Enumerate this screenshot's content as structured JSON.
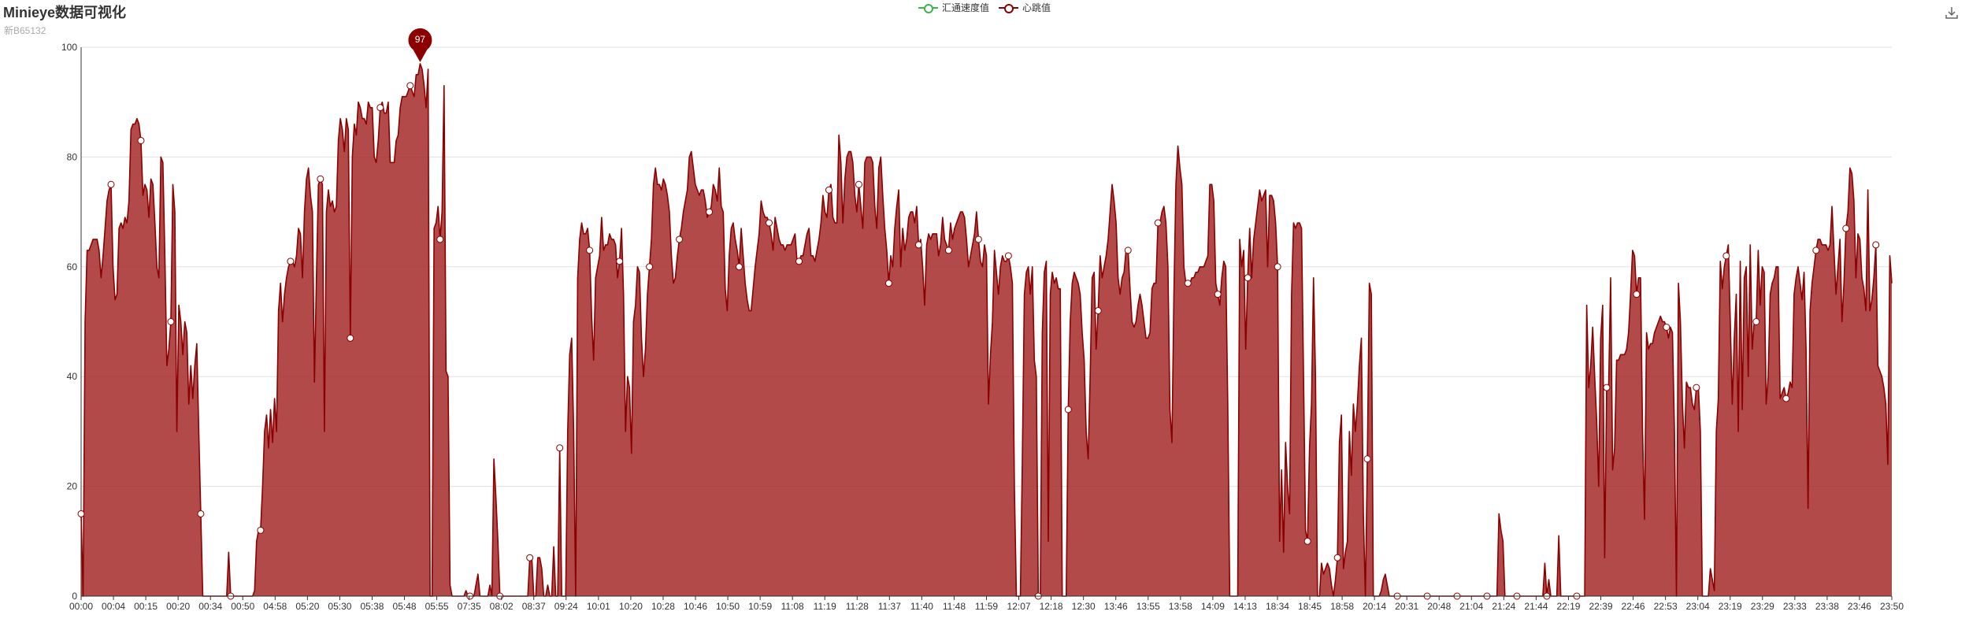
{
  "header": {
    "title": "Minieye数据可视化",
    "subtitle": "新B65132"
  },
  "legend": {
    "items": [
      {
        "label": "汇通速度值",
        "color": "#3cb44b"
      },
      {
        "label": "心跳值",
        "color": "#8b0000"
      }
    ]
  },
  "toolbox": {
    "icon": "download-icon"
  },
  "colors": {
    "series_line": "#8b0000",
    "series_fill": "#a52a2a",
    "grid": "#e0e0e0",
    "axis": "#333333",
    "marker": "#8b0000"
  },
  "chart_data": {
    "type": "area",
    "title": "Minieye数据可视化",
    "subtitle": "新B65132",
    "ylim": [
      0,
      100
    ],
    "yticks": [
      0,
      20,
      40,
      60,
      80,
      100
    ],
    "grid": true,
    "legend_position": "top-center",
    "xticks": [
      "00:00",
      "00:04",
      "00:15",
      "00:20",
      "00:34",
      "00:50",
      "04:58",
      "05:20",
      "05:30",
      "05:38",
      "05:48",
      "05:55",
      "07:35",
      "08:02",
      "08:37",
      "09:24",
      "10:01",
      "10:20",
      "10:28",
      "10:46",
      "10:50",
      "10:59",
      "11:08",
      "11:19",
      "11:28",
      "11:37",
      "11:40",
      "11:48",
      "11:59",
      "12:07",
      "12:18",
      "12:30",
      "13:46",
      "13:55",
      "13:58",
      "14:09",
      "14:13",
      "18:34",
      "18:45",
      "18:58",
      "20:14",
      "20:31",
      "20:48",
      "21:04",
      "21:24",
      "21:44",
      "22:19",
      "22:39",
      "22:46",
      "22:53",
      "23:04",
      "23:19",
      "23:29",
      "23:33",
      "23:38",
      "23:46",
      "23:50"
    ],
    "series": [
      {
        "name": "心跳值",
        "values": [
          15,
          0,
          50,
          63,
          63,
          64,
          65,
          65,
          65,
          63,
          58,
          62,
          67,
          72,
          74,
          75,
          60,
          54,
          55,
          67,
          68,
          67,
          69,
          68,
          72,
          85,
          86,
          86,
          87,
          86,
          83,
          73,
          75,
          74,
          69,
          76,
          75,
          68,
          60,
          58,
          80,
          79,
          62,
          42,
          45,
          50,
          75,
          70,
          30,
          53,
          50,
          44,
          50,
          48,
          35,
          42,
          36,
          42,
          46,
          30,
          15,
          0,
          0,
          0,
          0,
          0,
          0,
          0,
          0,
          0,
          0,
          0,
          0,
          0,
          8,
          0,
          0,
          0,
          0,
          0,
          0,
          0,
          0,
          0,
          0,
          0,
          0,
          1,
          10,
          12,
          12,
          20,
          30,
          33,
          27,
          34,
          28,
          36,
          30,
          52,
          57,
          50,
          55,
          58,
          60,
          61,
          61,
          60,
          62,
          67,
          66,
          58,
          70,
          76,
          78,
          73,
          70,
          39,
          58,
          75,
          76,
          75,
          30,
          70,
          74,
          71,
          72,
          70,
          71,
          83,
          87,
          85,
          81,
          87,
          85,
          47,
          80,
          86,
          84,
          90,
          89,
          87,
          87,
          86,
          90,
          89,
          89,
          80,
          79,
          83,
          89,
          90,
          88,
          88,
          90,
          79,
          79,
          79,
          83,
          84,
          89,
          91,
          91,
          91,
          92,
          93,
          92,
          91,
          95,
          95,
          97,
          96,
          93,
          89,
          96,
          0,
          0,
          67,
          68,
          71,
          65,
          70,
          93,
          41,
          40,
          2,
          0,
          0,
          0,
          0,
          0,
          0,
          0,
          1,
          0,
          0,
          0,
          0,
          2,
          4,
          0,
          0,
          0,
          0,
          0,
          2,
          0,
          25,
          18,
          10,
          0,
          0,
          0,
          0,
          0,
          0,
          0,
          0,
          0,
          0,
          0,
          0,
          0,
          0,
          0,
          7,
          7,
          0,
          0,
          7,
          7,
          5,
          0,
          0,
          2,
          0,
          0,
          9,
          0,
          0,
          27,
          0,
          0,
          0,
          30,
          44,
          47,
          30,
          0,
          58,
          65,
          68,
          66,
          66,
          67,
          63,
          51,
          43,
          58,
          60,
          62,
          69,
          63,
          64,
          64,
          66,
          65,
          65,
          64,
          58,
          61,
          67,
          55,
          30,
          40,
          38,
          26,
          50,
          53,
          60,
          59,
          47,
          40,
          45,
          55,
          60,
          65,
          75,
          78,
          75,
          75,
          74,
          76,
          75,
          73,
          70,
          62,
          57,
          58,
          62,
          65,
          67,
          70,
          72,
          74,
          80,
          81,
          78,
          75,
          74,
          73,
          74,
          74,
          72,
          69,
          70,
          71,
          75,
          74,
          72,
          78,
          71,
          70,
          56,
          52,
          62,
          67,
          68,
          65,
          63,
          60,
          67,
          62,
          57,
          54,
          52,
          52,
          56,
          60,
          63,
          66,
          72,
          70,
          69,
          69,
          68,
          66,
          63,
          69,
          67,
          65,
          64,
          64,
          63,
          64,
          64,
          64,
          65,
          66,
          61,
          61,
          62,
          62,
          64,
          66,
          67,
          62,
          62,
          61,
          63,
          65,
          68,
          73,
          70,
          69,
          74,
          75,
          69,
          68,
          68,
          84,
          79,
          68,
          76,
          80,
          81,
          81,
          79,
          73,
          70,
          75,
          71,
          67,
          79,
          80,
          80,
          80,
          79,
          71,
          67,
          78,
          80,
          73,
          67,
          63,
          57,
          62,
          60,
          67,
          71,
          74,
          60,
          67,
          63,
          65,
          69,
          70,
          70,
          68,
          71,
          64,
          65,
          60,
          53,
          64,
          66,
          65,
          66,
          66,
          66,
          62,
          64,
          69,
          65,
          64,
          63,
          68,
          65,
          67,
          68,
          69,
          70,
          70,
          69,
          65,
          60,
          62,
          64,
          66,
          70,
          65,
          61,
          60,
          64,
          62,
          35,
          44,
          50,
          63,
          59,
          55,
          60,
          62,
          61,
          61,
          62,
          60,
          57,
          20,
          0,
          0,
          0,
          25,
          55,
          59,
          60,
          55,
          60,
          43,
          40,
          0,
          0,
          48,
          59,
          61,
          10,
          55,
          59,
          57,
          58,
          56,
          56,
          0,
          0,
          0,
          34,
          50,
          57,
          59,
          58,
          57,
          55,
          48,
          43,
          30,
          25,
          40,
          58,
          59,
          45,
          52,
          62,
          58,
          60,
          62,
          65,
          70,
          75,
          72,
          68,
          58,
          55,
          58,
          59,
          63,
          63,
          56,
          50,
          49,
          50,
          53,
          55,
          53,
          50,
          47,
          47,
          48,
          56,
          57,
          57,
          68,
          68,
          70,
          71,
          68,
          60,
          34,
          28,
          55,
          75,
          82,
          78,
          75,
          60,
          57,
          57,
          57,
          58,
          58,
          59,
          59,
          60,
          60,
          60,
          61,
          62,
          75,
          75,
          72,
          57,
          55,
          53,
          58,
          61,
          60,
          35,
          0,
          0,
          0,
          0,
          0,
          65,
          60,
          63,
          45,
          58,
          67,
          58,
          65,
          68,
          71,
          74,
          72,
          73,
          74,
          60,
          73,
          73,
          72,
          68,
          60,
          10,
          23,
          8,
          28,
          20,
          15,
          55,
          68,
          67,
          68,
          68,
          67,
          40,
          12,
          10,
          27,
          35,
          58,
          40,
          0,
          0,
          6,
          4,
          5,
          6,
          5,
          2,
          0,
          3,
          7,
          28,
          33,
          5,
          8,
          10,
          30,
          22,
          35,
          30,
          35,
          42,
          47,
          15,
          0,
          25,
          57,
          55,
          0,
          0,
          0,
          0,
          1,
          3,
          4,
          2,
          0,
          0,
          0,
          0,
          0,
          0,
          0,
          0,
          0,
          0,
          0,
          0,
          0,
          0,
          0,
          0,
          0,
          0,
          0,
          0,
          0,
          0,
          0,
          0,
          0,
          0,
          0,
          0,
          0,
          0,
          0,
          0,
          0,
          0,
          0,
          0,
          0,
          0,
          0,
          0,
          0,
          0,
          0,
          0,
          0,
          0,
          0,
          0,
          0,
          0,
          0,
          0,
          0,
          0,
          0,
          15,
          12,
          10,
          0,
          0,
          0,
          0,
          0,
          0,
          0,
          0,
          0,
          0,
          0,
          0,
          0,
          0,
          0,
          0,
          0,
          0,
          0,
          0,
          6,
          0,
          3,
          0,
          0,
          0,
          0,
          11,
          0,
          0,
          0,
          0,
          0,
          0,
          0,
          0,
          0,
          0,
          0,
          0,
          0,
          53,
          38,
          42,
          49,
          40,
          32,
          20,
          47,
          53,
          7,
          38,
          38,
          58,
          23,
          27,
          43,
          43,
          44,
          44,
          44,
          45,
          48,
          55,
          63,
          62,
          55,
          58,
          58,
          30,
          14,
          48,
          45,
          46,
          46,
          48,
          49,
          50,
          51,
          50,
          50,
          49,
          47,
          49,
          48,
          30,
          0,
          57,
          50,
          35,
          27,
          39,
          38,
          38,
          35,
          34,
          38,
          38,
          30,
          0,
          0,
          0,
          0,
          5,
          3,
          1,
          30,
          36,
          61,
          56,
          60,
          62,
          64,
          50,
          35,
          47,
          55,
          30,
          61,
          34,
          58,
          60,
          40,
          64,
          45,
          50,
          50,
          63,
          53,
          60,
          59,
          35,
          40,
          55,
          57,
          58,
          60,
          60,
          36,
          37,
          38,
          36,
          37,
          39,
          38,
          55,
          58,
          60,
          57,
          54,
          59,
          45,
          16,
          52,
          57,
          60,
          63,
          65,
          65,
          64,
          64,
          64,
          63,
          64,
          71,
          63,
          55,
          60,
          65,
          50,
          57,
          67,
          70,
          78,
          77,
          72,
          58,
          66,
          65,
          58,
          56,
          52,
          74,
          52,
          54,
          58,
          64,
          42,
          41,
          40,
          38,
          35,
          24,
          62,
          57
        ]
      }
    ],
    "markers": [
      {
        "label": "97",
        "type": "max",
        "value": 97
      }
    ]
  }
}
